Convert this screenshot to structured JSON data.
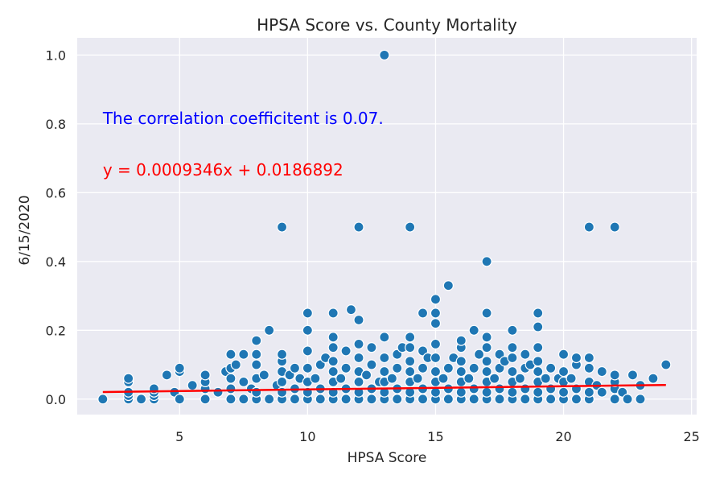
{
  "chart_data": {
    "type": "scatter",
    "title": "HPSA Score vs. County Mortality",
    "xlabel": "HPSA Score",
    "ylabel": "6/15/2020",
    "xlim": [
      1,
      25.2
    ],
    "ylim": [
      -0.045,
      1.05
    ],
    "xticks": [
      5,
      10,
      15,
      20,
      25
    ],
    "yticks": [
      0.0,
      0.2,
      0.4,
      0.6,
      0.8,
      1.0
    ],
    "ytick_labels": [
      "0.0",
      "0.2",
      "0.4",
      "0.6",
      "0.8",
      "1.0"
    ],
    "grid": true,
    "background": "#eaeaf2",
    "point_color": "#1f77b4",
    "line_color": "#ff0000",
    "regression": {
      "slope": 0.0009346,
      "intercept": 0.0186892,
      "x_range": [
        2,
        24
      ]
    },
    "annotations": [
      {
        "text": "The correlation coefficitent is 0.07.",
        "color": "#0000ff",
        "x": 2,
        "y": 0.8
      },
      {
        "text": "y = 0.0009346x + 0.0186892",
        "color": "#ff0000",
        "x": 2,
        "y": 0.65
      }
    ],
    "points": [
      [
        2,
        0.0
      ],
      [
        3,
        0.0
      ],
      [
        3,
        0.01
      ],
      [
        3,
        0.02
      ],
      [
        3,
        0.05
      ],
      [
        3,
        0.06
      ],
      [
        3.5,
        0.0
      ],
      [
        4,
        0.0
      ],
      [
        4,
        0.01
      ],
      [
        4,
        0.02
      ],
      [
        4,
        0.03
      ],
      [
        4.5,
        0.07
      ],
      [
        4.8,
        0.02
      ],
      [
        5,
        0.0
      ],
      [
        5,
        0.08
      ],
      [
        5,
        0.09
      ],
      [
        5.5,
        0.04
      ],
      [
        6,
        0.0
      ],
      [
        6,
        0.03
      ],
      [
        6,
        0.05
      ],
      [
        6,
        0.07
      ],
      [
        6.5,
        0.02
      ],
      [
        6.8,
        0.08
      ],
      [
        7,
        0.0
      ],
      [
        7,
        0.03
      ],
      [
        7,
        0.06
      ],
      [
        7,
        0.09
      ],
      [
        7,
        0.13
      ],
      [
        7.2,
        0.1
      ],
      [
        7.5,
        0.0
      ],
      [
        7.5,
        0.05
      ],
      [
        7.5,
        0.13
      ],
      [
        7.8,
        0.03
      ],
      [
        8,
        0.0
      ],
      [
        8,
        0.02
      ],
      [
        8,
        0.06
      ],
      [
        8,
        0.1
      ],
      [
        8,
        0.13
      ],
      [
        8,
        0.17
      ],
      [
        8.3,
        0.07
      ],
      [
        8.5,
        0.2
      ],
      [
        8.5,
        0.0
      ],
      [
        8.8,
        0.04
      ],
      [
        9,
        0.0
      ],
      [
        9,
        0.02
      ],
      [
        9,
        0.05
      ],
      [
        9,
        0.08
      ],
      [
        9,
        0.11
      ],
      [
        9,
        0.13
      ],
      [
        9,
        0.5
      ],
      [
        9.3,
        0.07
      ],
      [
        9.5,
        0.0
      ],
      [
        9.5,
        0.03
      ],
      [
        9.5,
        0.09
      ],
      [
        9.7,
        0.06
      ],
      [
        10,
        0.0
      ],
      [
        10,
        0.02
      ],
      [
        10,
        0.05
      ],
      [
        10,
        0.09
      ],
      [
        10,
        0.14
      ],
      [
        10,
        0.2
      ],
      [
        10,
        0.25
      ],
      [
        10.3,
        0.06
      ],
      [
        10.5,
        0.0
      ],
      [
        10.5,
        0.03
      ],
      [
        10.5,
        0.1
      ],
      [
        10.7,
        0.12
      ],
      [
        11,
        0.0
      ],
      [
        11,
        0.02
      ],
      [
        11,
        0.05
      ],
      [
        11,
        0.08
      ],
      [
        11,
        0.11
      ],
      [
        11,
        0.15
      ],
      [
        11,
        0.18
      ],
      [
        11,
        0.25
      ],
      [
        11.3,
        0.06
      ],
      [
        11.5,
        0.0
      ],
      [
        11.5,
        0.03
      ],
      [
        11.5,
        0.09
      ],
      [
        11.5,
        0.14
      ],
      [
        11.7,
        0.26
      ],
      [
        12,
        0.0
      ],
      [
        12,
        0.02
      ],
      [
        12,
        0.05
      ],
      [
        12,
        0.08
      ],
      [
        12,
        0.12
      ],
      [
        12,
        0.16
      ],
      [
        12,
        0.23
      ],
      [
        12,
        0.5
      ],
      [
        12.3,
        0.07
      ],
      [
        12.5,
        0.0
      ],
      [
        12.5,
        0.03
      ],
      [
        12.5,
        0.1
      ],
      [
        12.5,
        0.15
      ],
      [
        12.8,
        0.05
      ],
      [
        13,
        0.0
      ],
      [
        13,
        0.02
      ],
      [
        13,
        0.05
      ],
      [
        13,
        0.08
      ],
      [
        13,
        0.12
      ],
      [
        13,
        0.18
      ],
      [
        13,
        1.0
      ],
      [
        13.3,
        0.06
      ],
      [
        13.5,
        0.0
      ],
      [
        13.5,
        0.03
      ],
      [
        13.5,
        0.09
      ],
      [
        13.5,
        0.13
      ],
      [
        13.7,
        0.15
      ],
      [
        14,
        0.0
      ],
      [
        14,
        0.02
      ],
      [
        14,
        0.05
      ],
      [
        14,
        0.08
      ],
      [
        14,
        0.11
      ],
      [
        14,
        0.15
      ],
      [
        14,
        0.18
      ],
      [
        14,
        0.5
      ],
      [
        14.3,
        0.06
      ],
      [
        14.5,
        0.0
      ],
      [
        14.5,
        0.03
      ],
      [
        14.5,
        0.09
      ],
      [
        14.5,
        0.14
      ],
      [
        14.5,
        0.25
      ],
      [
        14.7,
        0.12
      ],
      [
        15,
        0.0
      ],
      [
        15,
        0.02
      ],
      [
        15,
        0.05
      ],
      [
        15,
        0.08
      ],
      [
        15,
        0.12
      ],
      [
        15,
        0.16
      ],
      [
        15,
        0.22
      ],
      [
        15,
        0.25
      ],
      [
        15,
        0.29
      ],
      [
        15.3,
        0.06
      ],
      [
        15.5,
        0.0
      ],
      [
        15.5,
        0.03
      ],
      [
        15.5,
        0.09
      ],
      [
        15.5,
        0.33
      ],
      [
        15.7,
        0.12
      ],
      [
        16,
        0.0
      ],
      [
        16,
        0.02
      ],
      [
        16,
        0.05
      ],
      [
        16,
        0.08
      ],
      [
        16,
        0.11
      ],
      [
        16,
        0.15
      ],
      [
        16,
        0.17
      ],
      [
        16.3,
        0.06
      ],
      [
        16.5,
        0.0
      ],
      [
        16.5,
        0.03
      ],
      [
        16.5,
        0.09
      ],
      [
        16.5,
        0.2
      ],
      [
        16.7,
        0.13
      ],
      [
        17,
        0.0
      ],
      [
        17,
        0.02
      ],
      [
        17,
        0.05
      ],
      [
        17,
        0.08
      ],
      [
        17,
        0.11
      ],
      [
        17,
        0.15
      ],
      [
        17,
        0.18
      ],
      [
        17,
        0.25
      ],
      [
        17,
        0.4
      ],
      [
        17.3,
        0.06
      ],
      [
        17.5,
        0.0
      ],
      [
        17.5,
        0.03
      ],
      [
        17.5,
        0.09
      ],
      [
        17.5,
        0.13
      ],
      [
        17.7,
        0.11
      ],
      [
        18,
        0.0
      ],
      [
        18,
        0.02
      ],
      [
        18,
        0.05
      ],
      [
        18,
        0.08
      ],
      [
        18,
        0.12
      ],
      [
        18,
        0.15
      ],
      [
        18,
        0.2
      ],
      [
        18.3,
        0.06
      ],
      [
        18.5,
        0.0
      ],
      [
        18.5,
        0.03
      ],
      [
        18.5,
        0.09
      ],
      [
        18.5,
        0.13
      ],
      [
        18.7,
        0.1
      ],
      [
        19,
        0.0
      ],
      [
        19,
        0.02
      ],
      [
        19,
        0.05
      ],
      [
        19,
        0.08
      ],
      [
        19,
        0.11
      ],
      [
        19,
        0.15
      ],
      [
        19,
        0.21
      ],
      [
        19,
        0.25
      ],
      [
        19.3,
        0.06
      ],
      [
        19.5,
        0.0
      ],
      [
        19.5,
        0.03
      ],
      [
        19.5,
        0.09
      ],
      [
        19.8,
        0.06
      ],
      [
        20,
        0.0
      ],
      [
        20,
        0.02
      ],
      [
        20,
        0.05
      ],
      [
        20,
        0.08
      ],
      [
        20,
        0.13
      ],
      [
        20.3,
        0.06
      ],
      [
        20.5,
        0.0
      ],
      [
        20.5,
        0.03
      ],
      [
        20.5,
        0.1
      ],
      [
        20.5,
        0.12
      ],
      [
        21,
        0.0
      ],
      [
        21,
        0.02
      ],
      [
        21,
        0.05
      ],
      [
        21,
        0.09
      ],
      [
        21,
        0.12
      ],
      [
        21,
        0.5
      ],
      [
        21.3,
        0.04
      ],
      [
        21.5,
        0.02
      ],
      [
        21.5,
        0.08
      ],
      [
        22,
        0.0
      ],
      [
        22,
        0.03
      ],
      [
        22,
        0.05
      ],
      [
        22,
        0.07
      ],
      [
        22,
        0.5
      ],
      [
        22.3,
        0.02
      ],
      [
        22.5,
        0.0
      ],
      [
        22.7,
        0.07
      ],
      [
        23,
        0.0
      ],
      [
        23,
        0.04
      ],
      [
        23.5,
        0.06
      ],
      [
        24,
        0.1
      ]
    ]
  }
}
